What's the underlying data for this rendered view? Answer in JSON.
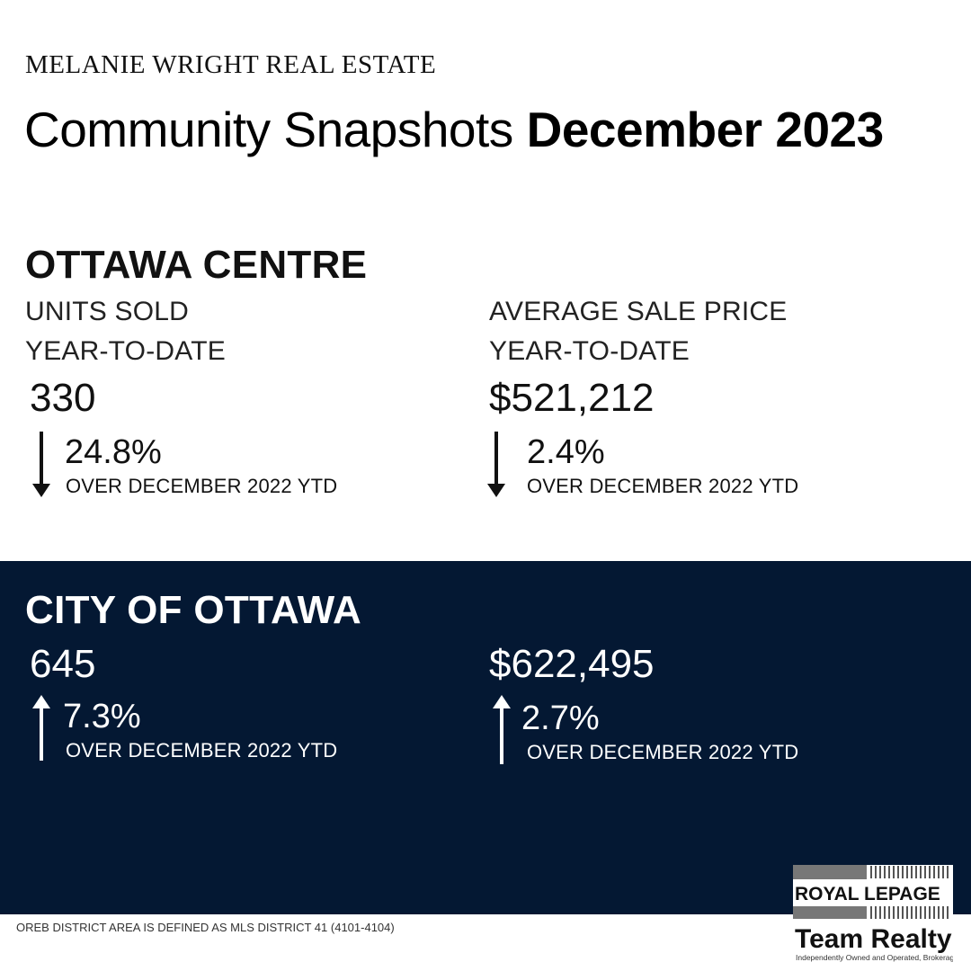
{
  "brand": "MELANIE WRIGHT REAL ESTATE",
  "title": {
    "regular": "Community Snapshots",
    "bold": "December 2023"
  },
  "ottawa_centre": {
    "heading": "OTTAWA CENTRE",
    "units": {
      "label": "UNITS SOLD",
      "period": "YEAR-TO-DATE",
      "value": "330",
      "direction": "down",
      "change": "24.8%",
      "comparison": "OVER DECEMBER 2022 YTD"
    },
    "price": {
      "label": "AVERAGE SALE PRICE",
      "period": "YEAR-TO-DATE",
      "value": "$521,212",
      "direction": "down",
      "change": "2.4%",
      "comparison": "OVER DECEMBER 2022 YTD"
    }
  },
  "city_of_ottawa": {
    "heading": "CITY OF OTTAWA",
    "units": {
      "value": "645",
      "direction": "up",
      "change": "7.3%",
      "comparison": "OVER DECEMBER 2022 YTD"
    },
    "price": {
      "value": "$622,495",
      "direction": "up",
      "change": "2.7%",
      "comparison": "OVER DECEMBER 2022 YTD"
    }
  },
  "footnote": "OREB DISTRICT AREA IS DEFINED AS MLS DISTRICT 41 (4101-4104)",
  "logo": {
    "line1": "ROYAL LEPAGE",
    "line2": "Team Realty",
    "line3": "Independently Owned and Operated, Brokerage"
  },
  "colors": {
    "dark_band": "#041833",
    "text": "#111111"
  }
}
